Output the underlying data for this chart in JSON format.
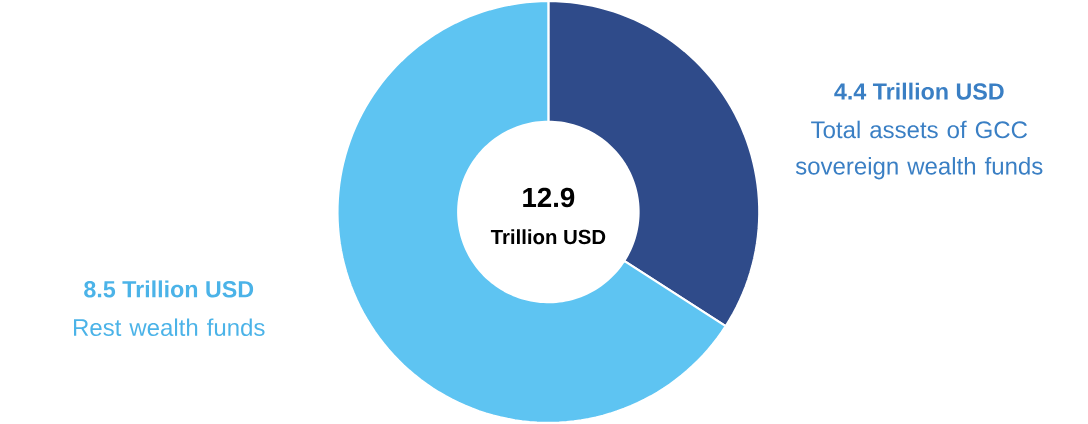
{
  "chart_data": {
    "type": "donut",
    "categories": [
      "Total assets of GCC sovereign wealth funds",
      "Rest wealth funds"
    ],
    "values": [
      4.4,
      8.5
    ],
    "colors": [
      "#2f4b8a",
      "#5ec4f2"
    ],
    "value_labels": [
      "4.4 Trillion USD",
      "8.5 Trillion USD"
    ],
    "annotations": [
      "12.9",
      "Trillion USD"
    ]
  }
}
